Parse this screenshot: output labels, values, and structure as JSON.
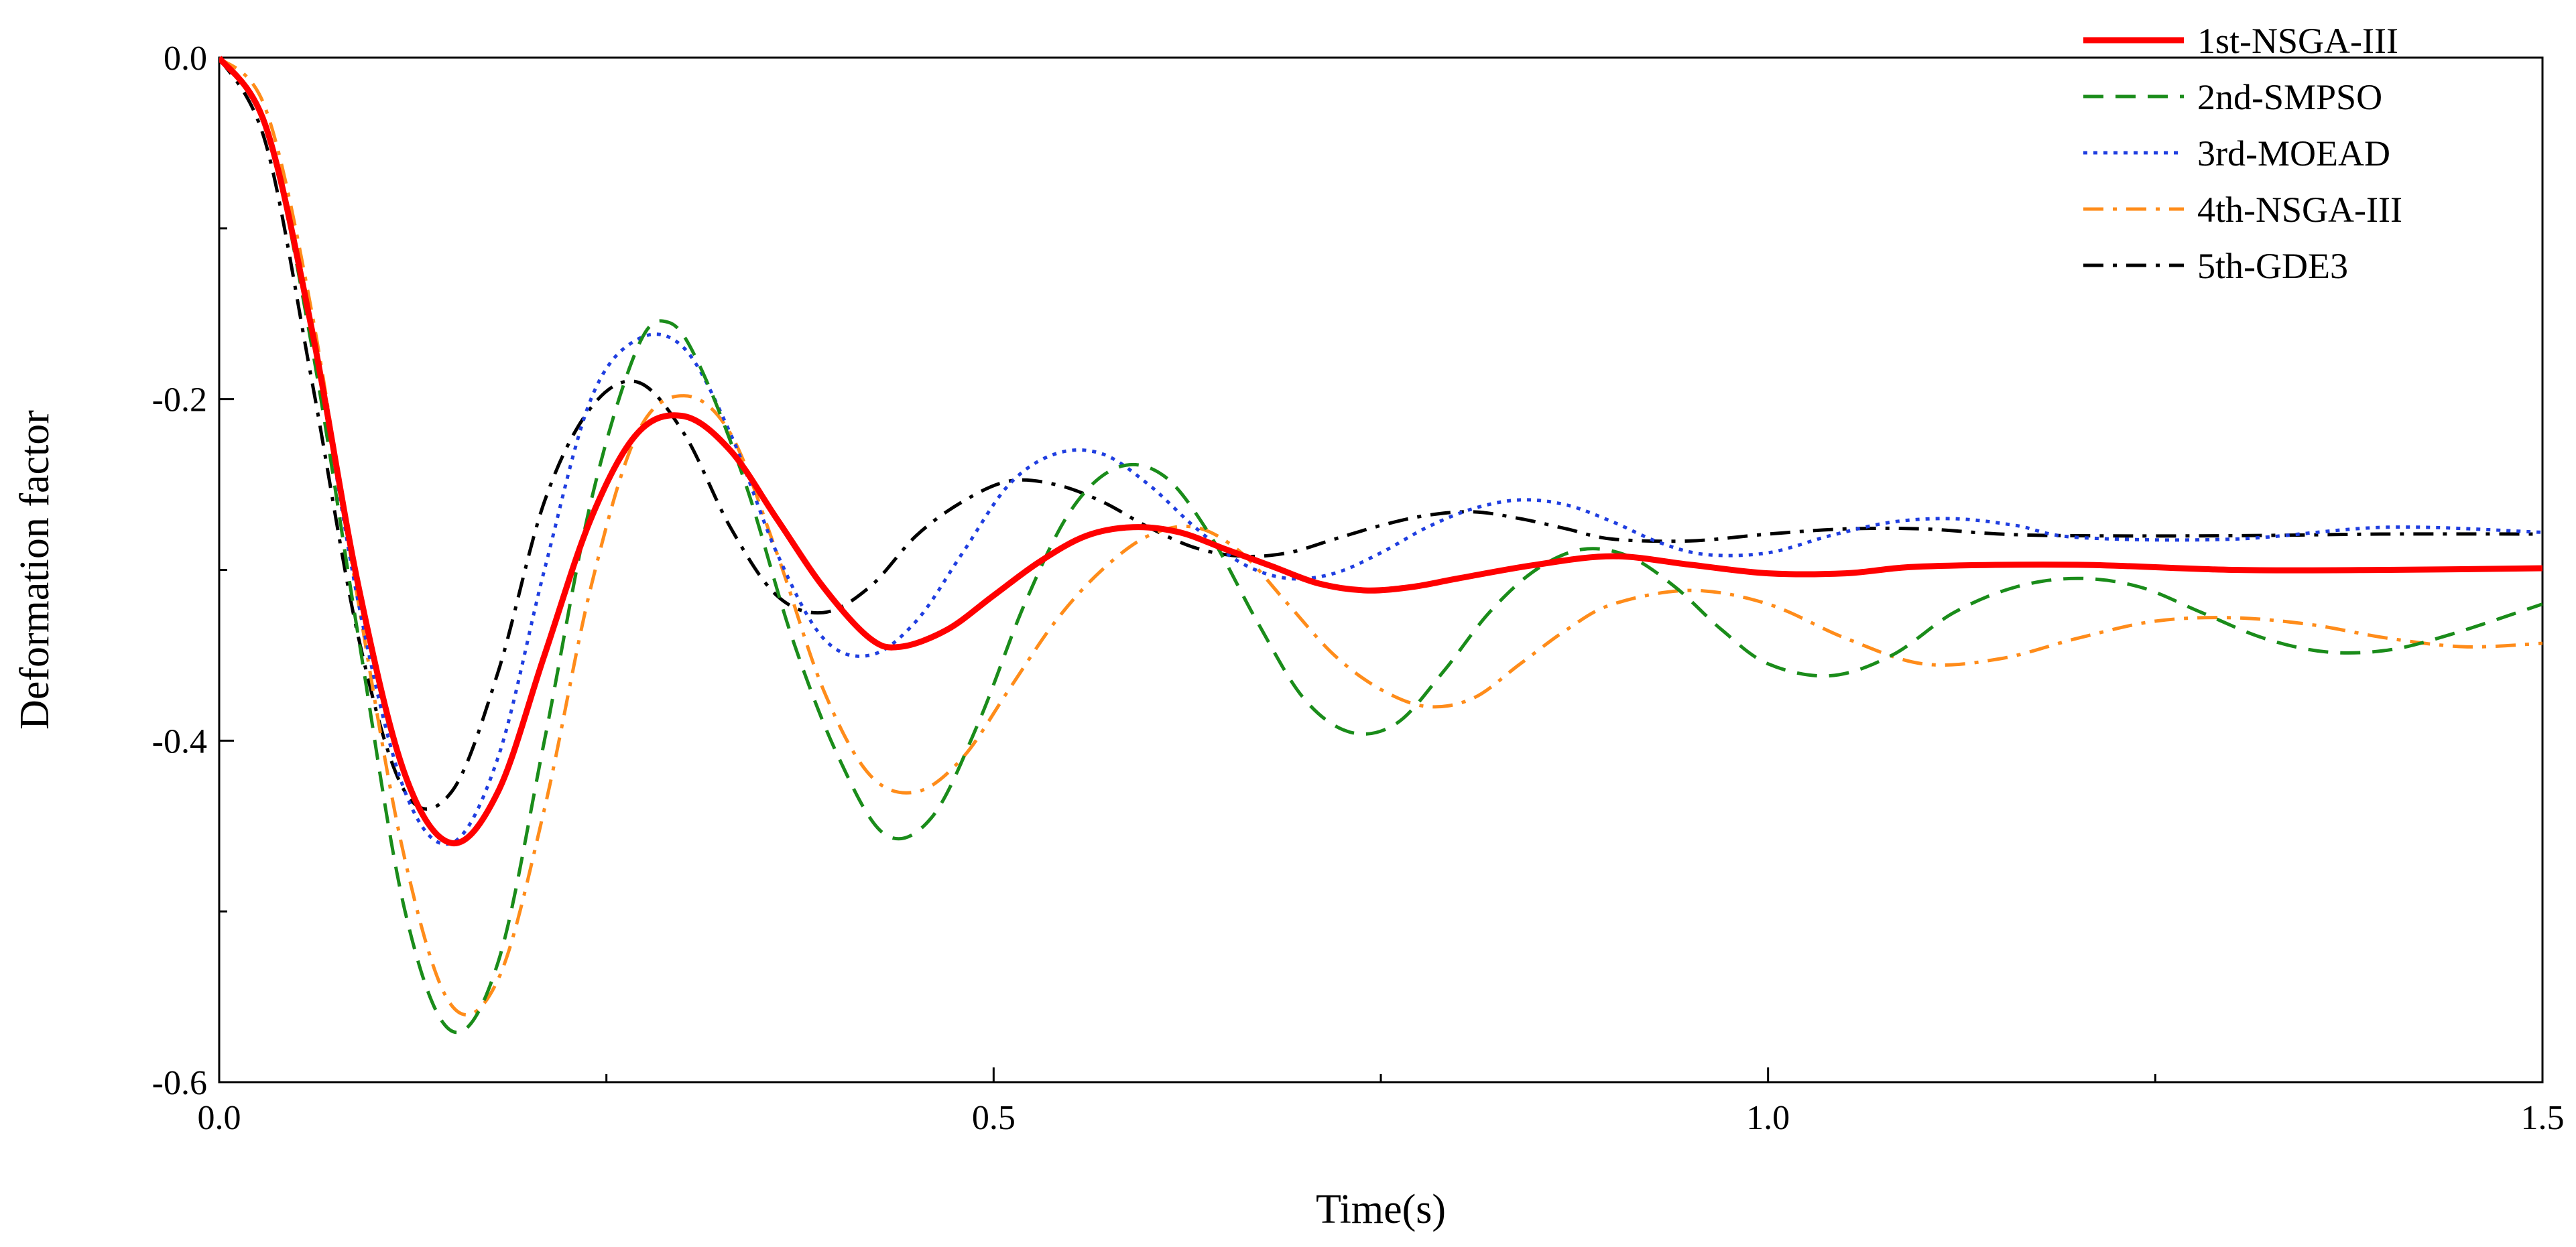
{
  "chart_data": {
    "type": "line",
    "title": "",
    "xlabel": "Time(s)",
    "ylabel": "Deformation factor",
    "xlim": [
      0,
      1.5
    ],
    "ylim": [
      -0.6,
      0.0
    ],
    "xticks": [
      0.0,
      0.5,
      1.0,
      1.5
    ],
    "xtick_labels": [
      "0.0",
      "0.5",
      "1.0",
      "1.5"
    ],
    "yticks": [
      0.0,
      -0.2,
      -0.4,
      -0.6
    ],
    "ytick_labels": [
      "0.0",
      "-0.2",
      "-0.4",
      "-0.6"
    ],
    "legend_position": "top-right",
    "series": [
      {
        "name": "1st-NSGA-III",
        "color": "#ff0000",
        "dash": "solid",
        "x": [
          0,
          0.03,
          0.06,
          0.09,
          0.12,
          0.15,
          0.18,
          0.21,
          0.24,
          0.27,
          0.3,
          0.33,
          0.36,
          0.39,
          0.42,
          0.44,
          0.47,
          0.5,
          0.53,
          0.56,
          0.59,
          0.62,
          0.65,
          0.68,
          0.71,
          0.74,
          0.77,
          0.8,
          0.85,
          0.9,
          0.95,
          1.0,
          1.05,
          1.1,
          1.2,
          1.3,
          1.4,
          1.5
        ],
        "values": [
          0,
          -0.04,
          -0.16,
          -0.31,
          -0.42,
          -0.46,
          -0.43,
          -0.35,
          -0.27,
          -0.22,
          -0.21,
          -0.23,
          -0.27,
          -0.31,
          -0.34,
          -0.345,
          -0.335,
          -0.315,
          -0.295,
          -0.28,
          -0.275,
          -0.278,
          -0.288,
          -0.298,
          -0.308,
          -0.312,
          -0.31,
          -0.305,
          -0.297,
          -0.292,
          -0.297,
          -0.302,
          -0.302,
          -0.298,
          -0.297,
          -0.3,
          -0.3,
          -0.299
        ]
      },
      {
        "name": "2nd-SMPSO",
        "color": "#1a8c1a",
        "dash": "dashed",
        "x": [
          0,
          0.03,
          0.06,
          0.09,
          0.12,
          0.15,
          0.18,
          0.21,
          0.24,
          0.27,
          0.29,
          0.31,
          0.34,
          0.37,
          0.4,
          0.43,
          0.46,
          0.49,
          0.52,
          0.55,
          0.58,
          0.61,
          0.64,
          0.67,
          0.7,
          0.73,
          0.76,
          0.79,
          0.82,
          0.85,
          0.88,
          0.91,
          0.94,
          0.97,
          1.0,
          1.04,
          1.08,
          1.12,
          1.16,
          1.2,
          1.24,
          1.28,
          1.32,
          1.36,
          1.4,
          1.44,
          1.5
        ],
        "values": [
          0,
          -0.04,
          -0.17,
          -0.34,
          -0.5,
          -0.57,
          -0.53,
          -0.4,
          -0.26,
          -0.17,
          -0.155,
          -0.18,
          -0.25,
          -0.34,
          -0.41,
          -0.455,
          -0.445,
          -0.39,
          -0.32,
          -0.265,
          -0.24,
          -0.245,
          -0.28,
          -0.33,
          -0.375,
          -0.395,
          -0.39,
          -0.36,
          -0.325,
          -0.3,
          -0.288,
          -0.292,
          -0.31,
          -0.335,
          -0.355,
          -0.362,
          -0.35,
          -0.325,
          -0.31,
          -0.305,
          -0.31,
          -0.325,
          -0.34,
          -0.348,
          -0.347,
          -0.338,
          -0.32
        ]
      },
      {
        "name": "3rd-MOEAD",
        "color": "#1f3ee0",
        "dash": "dotted",
        "x": [
          0,
          0.03,
          0.06,
          0.09,
          0.12,
          0.15,
          0.18,
          0.21,
          0.24,
          0.27,
          0.3,
          0.33,
          0.36,
          0.39,
          0.42,
          0.45,
          0.48,
          0.51,
          0.54,
          0.57,
          0.6,
          0.63,
          0.66,
          0.69,
          0.72,
          0.75,
          0.78,
          0.81,
          0.84,
          0.87,
          0.9,
          0.93,
          0.96,
          1.0,
          1.04,
          1.08,
          1.12,
          1.16,
          1.2,
          1.3,
          1.4,
          1.5
        ],
        "values": [
          0,
          -0.04,
          -0.16,
          -0.32,
          -0.43,
          -0.46,
          -0.41,
          -0.3,
          -0.2,
          -0.165,
          -0.17,
          -0.22,
          -0.29,
          -0.34,
          -0.35,
          -0.33,
          -0.29,
          -0.25,
          -0.232,
          -0.232,
          -0.25,
          -0.275,
          -0.296,
          -0.305,
          -0.302,
          -0.29,
          -0.275,
          -0.264,
          -0.259,
          -0.262,
          -0.272,
          -0.284,
          -0.291,
          -0.29,
          -0.28,
          -0.272,
          -0.27,
          -0.274,
          -0.281,
          -0.282,
          -0.275,
          -0.278
        ]
      },
      {
        "name": "4th-NSGA-III",
        "color": "#ff8c1a",
        "dash": "dashdot",
        "x": [
          0,
          0.03,
          0.06,
          0.09,
          0.12,
          0.15,
          0.18,
          0.21,
          0.24,
          0.27,
          0.3,
          0.33,
          0.36,
          0.39,
          0.42,
          0.45,
          0.48,
          0.51,
          0.54,
          0.57,
          0.6,
          0.63,
          0.66,
          0.69,
          0.72,
          0.75,
          0.78,
          0.81,
          0.84,
          0.87,
          0.9,
          0.95,
          1.0,
          1.05,
          1.1,
          1.15,
          1.2,
          1.25,
          1.3,
          1.35,
          1.4,
          1.45,
          1.5
        ],
        "values": [
          0,
          -0.03,
          -0.15,
          -0.32,
          -0.47,
          -0.555,
          -0.54,
          -0.44,
          -0.31,
          -0.22,
          -0.198,
          -0.22,
          -0.29,
          -0.37,
          -0.42,
          -0.43,
          -0.41,
          -0.37,
          -0.33,
          -0.3,
          -0.28,
          -0.275,
          -0.29,
          -0.32,
          -0.35,
          -0.37,
          -0.38,
          -0.375,
          -0.355,
          -0.335,
          -0.32,
          -0.312,
          -0.32,
          -0.34,
          -0.355,
          -0.352,
          -0.34,
          -0.33,
          -0.328,
          -0.332,
          -0.34,
          -0.345,
          -0.343
        ]
      },
      {
        "name": "5th-GDE3",
        "color": "#000000",
        "dash": "dashdot",
        "x": [
          0,
          0.03,
          0.06,
          0.09,
          0.12,
          0.15,
          0.18,
          0.21,
          0.24,
          0.27,
          0.3,
          0.33,
          0.36,
          0.39,
          0.42,
          0.45,
          0.48,
          0.51,
          0.54,
          0.57,
          0.6,
          0.63,
          0.66,
          0.69,
          0.72,
          0.75,
          0.78,
          0.81,
          0.84,
          0.87,
          0.9,
          0.95,
          1.0,
          1.05,
          1.1,
          1.15,
          1.2,
          1.3,
          1.4,
          1.5
        ],
        "values": [
          0,
          -0.05,
          -0.19,
          -0.34,
          -0.43,
          -0.43,
          -0.36,
          -0.26,
          -0.205,
          -0.19,
          -0.22,
          -0.275,
          -0.315,
          -0.325,
          -0.31,
          -0.28,
          -0.26,
          -0.248,
          -0.25,
          -0.26,
          -0.275,
          -0.287,
          -0.292,
          -0.29,
          -0.282,
          -0.274,
          -0.268,
          -0.266,
          -0.27,
          -0.276,
          -0.282,
          -0.283,
          -0.279,
          -0.276,
          -0.276,
          -0.279,
          -0.28,
          -0.28,
          -0.279,
          -0.279
        ]
      }
    ]
  }
}
